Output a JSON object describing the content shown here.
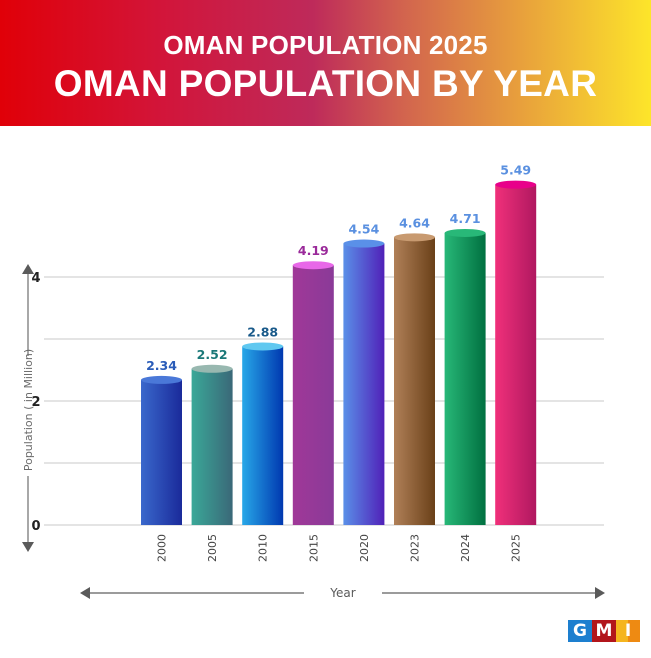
{
  "header": {
    "subtitle": "OMAN POPULATION 2025",
    "title": "OMAN POPULATION BY YEAR"
  },
  "logo": {
    "letters": [
      "G",
      "M",
      "I"
    ]
  },
  "chart_data": {
    "type": "bar",
    "title": "OMAN POPULATION BY YEAR",
    "subtitle": "OMAN POPULATION 2025",
    "xlabel": "Year",
    "ylabel": "Population ( in Million)",
    "categories": [
      "2000",
      "2005",
      "2010",
      "2015",
      "2020",
      "2023",
      "2024",
      "2025"
    ],
    "values": [
      2.34,
      2.52,
      2.88,
      4.19,
      4.54,
      4.64,
      4.71,
      5.49
    ],
    "data_labels": [
      "2.34",
      "2.52",
      "2.88",
      "4.19",
      "4.54",
      "4.64",
      "4.71",
      "5.49"
    ],
    "yticks": [
      "0",
      "2",
      "4"
    ],
    "ylim": [
      0,
      4.5
    ],
    "grid": true,
    "legend": "none",
    "bar_colors": [
      {
        "light": "#3a68cc",
        "dark": "#1a2a9a",
        "top": "#4a78d8",
        "label": "#2a5cb8"
      },
      {
        "light": "#3aa898",
        "dark": "#3a6878",
        "top": "#98b8b0",
        "label": "#1a7878"
      },
      {
        "light": "#28a8e8",
        "dark": "#0038b0",
        "top": "#60c8f0",
        "label": "#1a5a8a"
      },
      {
        "light": "#a03898",
        "dark": "#8a3a98",
        "top": "#e868e8",
        "label": "#9a2a9a"
      },
      {
        "light": "#5a90e8",
        "dark": "#5020b8",
        "top": "#5a90e8",
        "label": "#5a90e0"
      },
      {
        "light": "#b08058",
        "dark": "#6a4018",
        "top": "#c89a70",
        "label": "#5a90e0"
      },
      {
        "light": "#28b878",
        "dark": "#007040",
        "top": "#28b878",
        "label": "#5a90e0"
      },
      {
        "light": "#f0307a",
        "dark": "#b01860",
        "top": "#e8008a",
        "label": "#5a90e0"
      }
    ]
  }
}
